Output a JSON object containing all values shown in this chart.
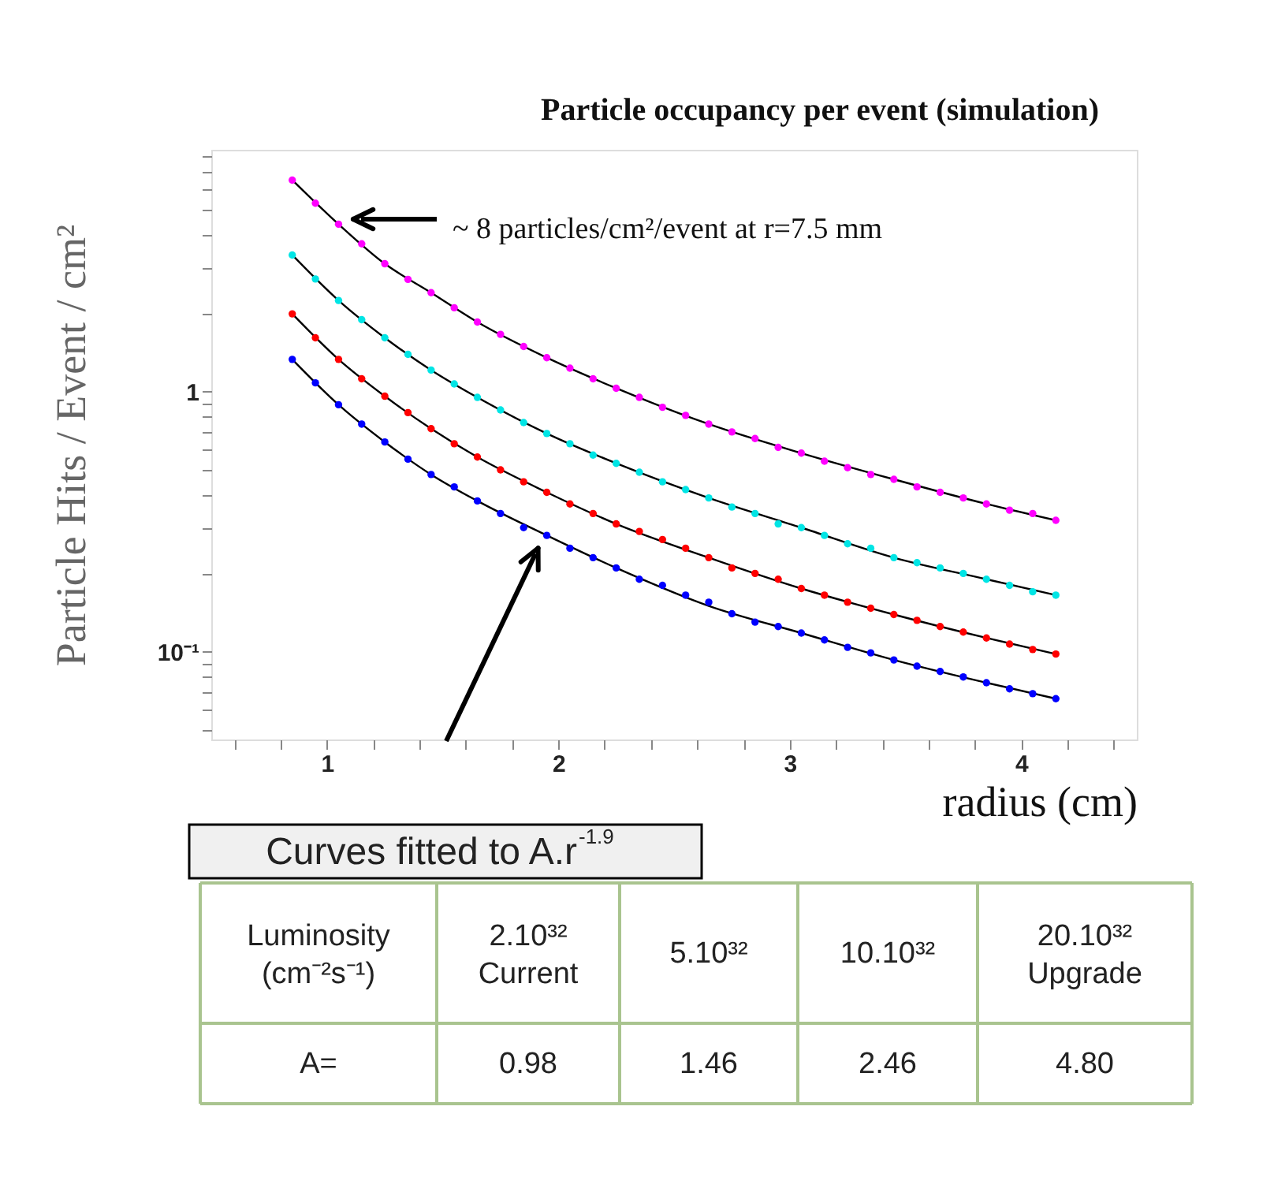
{
  "chart_data": {
    "type": "scatter",
    "title": "Particle occupancy per event (simulation)",
    "xlabel": "radius (cm)",
    "ylabel": "Particle Hits / Event / cm²",
    "xlim": [
      0.5,
      4.5
    ],
    "ylim": [
      0.046,
      8.5
    ],
    "log": true,
    "grid": false,
    "line_style": "solid",
    "xticks": [
      {
        "value": 0.6,
        "label": null
      },
      {
        "value": 0.8,
        "label": null
      },
      1,
      {
        "value": 1.2,
        "label": null
      },
      {
        "value": 1.4,
        "label": null
      },
      {
        "value": 1.6,
        "label": null
      },
      {
        "value": 1.8,
        "label": null
      },
      2,
      {
        "value": 2.2,
        "label": null
      },
      {
        "value": 2.4,
        "label": null
      },
      {
        "value": 2.6,
        "label": null
      },
      {
        "value": 2.8,
        "label": null
      },
      3,
      {
        "value": 3.2,
        "label": null
      },
      {
        "value": 3.4,
        "label": null
      },
      {
        "value": 3.6,
        "label": null
      },
      {
        "value": 3.8,
        "label": null
      },
      4,
      {
        "value": 4.2,
        "label": null
      },
      {
        "value": 4.4,
        "label": null
      }
    ],
    "yticks": [
      {
        "value": 0.05,
        "label": null
      },
      {
        "value": 0.06,
        "label": null
      },
      {
        "value": 0.07,
        "label": null
      },
      {
        "value": 0.08,
        "label": null
      },
      {
        "value": 0.09,
        "label": null
      },
      {
        "value": 0.1,
        "label": "10⁻¹"
      },
      {
        "value": 0.2,
        "label": null
      },
      {
        "value": 0.3,
        "label": null
      },
      {
        "value": 0.4,
        "label": null
      },
      {
        "value": 0.5,
        "label": null
      },
      {
        "value": 0.6,
        "label": null
      },
      {
        "value": 0.7,
        "label": null
      },
      {
        "value": 0.8,
        "label": null
      },
      {
        "value": 0.9,
        "label": null
      },
      1,
      {
        "value": 2,
        "label": null
      },
      {
        "value": 3,
        "label": null
      },
      {
        "value": 4,
        "label": null
      },
      {
        "value": 5,
        "label": null
      },
      {
        "value": 6,
        "label": null
      },
      {
        "value": 7,
        "label": null
      },
      {
        "value": 8,
        "label": null
      }
    ],
    "annotations": [
      "~ 8 particles/cm²/event at r=7.5 mm",
      "Curves fitted to A.r$^{-1.9}$",
      "Luminosity\n(cm⁻²s⁻¹)",
      "2.10³²\nCurrent",
      "5.10³²",
      "10.10³²",
      "20.10³²\nUpgrade",
      "A=",
      "0.98",
      "1.46",
      "2.46",
      "4.80"
    ],
    "x": [
      0.85,
      0.95,
      1.05,
      1.15,
      1.25,
      1.35,
      1.45,
      1.55,
      1.65,
      1.75,
      1.85,
      1.95,
      2.05,
      2.15,
      2.25,
      2.35,
      2.45,
      2.55,
      2.65,
      2.75,
      2.85,
      2.95,
      3.05,
      3.15,
      3.25,
      3.35,
      3.45,
      3.55,
      3.65,
      3.75,
      3.85,
      3.95,
      4.05,
      4.15
    ],
    "series": [
      {
        "type": "line",
        "color": "#000000",
        "x": [
          0.85,
          1.05,
          1.25,
          1.45,
          1.65,
          1.95,
          2.25,
          2.65,
          3.05,
          3.45,
          3.85,
          4.15
        ],
        "values": [
          1.33,
          0.89,
          0.64,
          0.48,
          0.38,
          0.28,
          0.21,
          0.15,
          0.118,
          0.093,
          0.076,
          0.066
        ]
      },
      {
        "type": "line",
        "color": "#000000",
        "x": [
          0.85,
          1.05,
          1.25,
          1.45,
          1.65,
          1.95,
          2.25,
          2.65,
          3.05,
          3.45,
          3.85,
          4.15
        ],
        "values": [
          1.99,
          1.33,
          0.96,
          0.72,
          0.56,
          0.41,
          0.31,
          0.23,
          0.175,
          0.139,
          0.113,
          0.098
        ]
      },
      {
        "type": "line",
        "color": "#000000",
        "x": [
          0.85,
          1.05,
          1.25,
          1.45,
          1.65,
          1.95,
          2.25,
          2.65,
          3.05,
          3.45,
          3.85,
          4.15
        ],
        "values": [
          3.35,
          2.24,
          1.61,
          1.21,
          0.95,
          0.69,
          0.53,
          0.39,
          0.3,
          0.23,
          0.19,
          0.165
        ]
      },
      {
        "type": "line",
        "color": "#000000",
        "x": [
          0.85,
          1.05,
          1.25,
          1.45,
          1.65,
          1.95,
          2.25,
          2.65,
          3.05,
          3.45,
          3.85,
          4.15
        ],
        "values": [
          6.5,
          4.4,
          3.1,
          2.4,
          1.85,
          1.35,
          1.03,
          0.75,
          0.58,
          0.46,
          0.37,
          0.32
        ]
      },
      {
        "color": "#0000ff",
        "marker": "circle",
        "values": [
          1.33,
          1.08,
          0.89,
          0.75,
          0.64,
          0.55,
          0.48,
          0.43,
          0.38,
          0.34,
          0.3,
          0.28,
          0.25,
          0.23,
          0.21,
          0.19,
          0.18,
          0.165,
          0.155,
          0.14,
          0.13,
          0.125,
          0.118,
          0.111,
          0.104,
          0.099,
          0.093,
          0.088,
          0.084,
          0.08,
          0.076,
          0.072,
          0.069,
          0.066
        ]
      },
      {
        "color": "#ff0000",
        "marker": "circle",
        "values": [
          1.99,
          1.61,
          1.33,
          1.12,
          0.96,
          0.83,
          0.72,
          0.63,
          0.56,
          0.5,
          0.45,
          0.41,
          0.37,
          0.34,
          0.31,
          0.29,
          0.27,
          0.25,
          0.23,
          0.21,
          0.2,
          0.19,
          0.175,
          0.165,
          0.155,
          0.147,
          0.139,
          0.132,
          0.125,
          0.119,
          0.113,
          0.107,
          0.102,
          0.098
        ]
      },
      {
        "color": "#00e5e5",
        "marker": "circle",
        "values": [
          3.35,
          2.71,
          2.24,
          1.89,
          1.61,
          1.39,
          1.21,
          1.07,
          0.95,
          0.85,
          0.76,
          0.69,
          0.63,
          0.57,
          0.53,
          0.49,
          0.45,
          0.42,
          0.39,
          0.36,
          0.34,
          0.31,
          0.3,
          0.28,
          0.26,
          0.25,
          0.23,
          0.22,
          0.21,
          0.2,
          0.19,
          0.18,
          0.17,
          0.165
        ]
      },
      {
        "color": "#ff00ff",
        "marker": "circle",
        "values": [
          6.5,
          5.3,
          4.4,
          3.7,
          3.1,
          2.7,
          2.4,
          2.1,
          1.85,
          1.66,
          1.49,
          1.35,
          1.23,
          1.12,
          1.03,
          0.95,
          0.87,
          0.81,
          0.75,
          0.7,
          0.66,
          0.61,
          0.58,
          0.54,
          0.51,
          0.48,
          0.46,
          0.43,
          0.41,
          0.39,
          0.37,
          0.35,
          0.34,
          0.32
        ]
      }
    ]
  }
}
